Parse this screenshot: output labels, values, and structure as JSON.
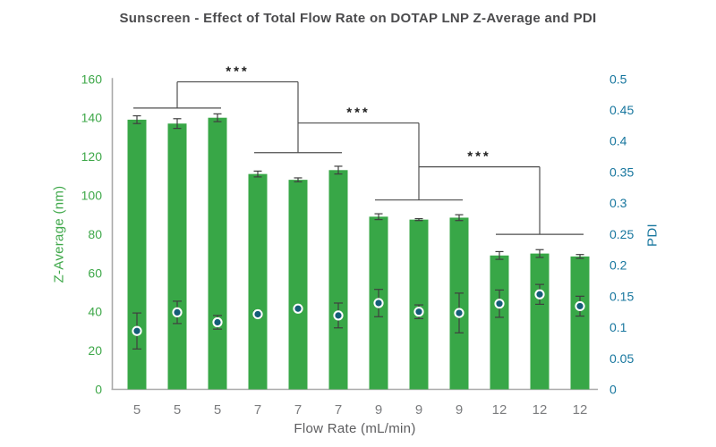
{
  "title": "Sunscreen - Effect of Total Flow Rate on DOTAP LNP Z-Average and PDI",
  "chart_data": {
    "type": "bar",
    "title": "Sunscreen - Effect of Total Flow Rate on DOTAP LNP Z-Average and PDI",
    "xlabel": "Flow Rate (mL/min)",
    "grid": false,
    "legend": "none",
    "y_left": {
      "label": "Z-Average (nm)",
      "min": 0,
      "max": 160,
      "tick_step": 20,
      "ticks": [
        "0",
        "20",
        "40",
        "60",
        "80",
        "100",
        "120",
        "140",
        "160"
      ],
      "color": "#3fa84a"
    },
    "y_right": {
      "label": "PDI",
      "min": 0,
      "max": 0.5,
      "tick_step": 0.05,
      "ticks": [
        "0",
        "0.05",
        "0.1",
        "0.15",
        "0.2",
        "0.25",
        "0.3",
        "0.35",
        "0.4",
        "0.45",
        "0.5"
      ],
      "color": "#17769e"
    },
    "categories": [
      "5",
      "5",
      "5",
      "7",
      "7",
      "7",
      "9",
      "9",
      "9",
      "12",
      "12",
      "12"
    ],
    "series": [
      {
        "name": "Z-Average (nm)",
        "type": "bar",
        "axis": "left",
        "color": "#38a747",
        "values": [
          139,
          137,
          140,
          111,
          108,
          113,
          89,
          87.5,
          88.5,
          69,
          70,
          68.5
        ],
        "errors": [
          2,
          2.5,
          2,
          1.5,
          1,
          2,
          1.5,
          0.5,
          1.5,
          2,
          2,
          1
        ]
      },
      {
        "name": "PDI",
        "type": "scatter",
        "axis": "right",
        "color": "#155d78",
        "values": [
          0.094,
          0.124,
          0.108,
          0.121,
          0.13,
          0.119,
          0.139,
          0.125,
          0.123,
          0.138,
          0.153,
          0.134
        ],
        "errors": [
          0.029,
          0.018,
          0.011,
          0.005,
          0.004,
          0.02,
          0.022,
          0.011,
          0.032,
          0.022,
          0.016,
          0.016
        ]
      }
    ],
    "significance": [
      {
        "label": "***",
        "left_group": 0,
        "right_group": 1,
        "left_bracket_y": 145,
        "line_y": 158.5,
        "right_bracket_y": 122
      },
      {
        "label": "***",
        "left_group": 1,
        "right_group": 2,
        "line_y": 137.3,
        "right_bracket_y": 97.6
      },
      {
        "label": "***",
        "left_group": 2,
        "right_group": 3,
        "line_y": 114.7,
        "right_bracket_y": 79.9
      }
    ],
    "groups": [
      {
        "flow_rate": "5",
        "bar_indices": [
          0,
          1,
          2
        ]
      },
      {
        "flow_rate": "7",
        "bar_indices": [
          3,
          4,
          5
        ]
      },
      {
        "flow_rate": "9",
        "bar_indices": [
          6,
          7,
          8
        ]
      },
      {
        "flow_rate": "12",
        "bar_indices": [
          9,
          10,
          11
        ]
      }
    ],
    "colors": {
      "bar": "#38a747",
      "dot_fill": "#155d78",
      "dot_ring": "#ffffff",
      "error_bar": "#3f3f3f",
      "axis_line": "#a9a9a9",
      "sig_line": "#4f4f4f",
      "title_text": "#4b4b4d",
      "x_tick_text": "#7b7c7e"
    }
  }
}
